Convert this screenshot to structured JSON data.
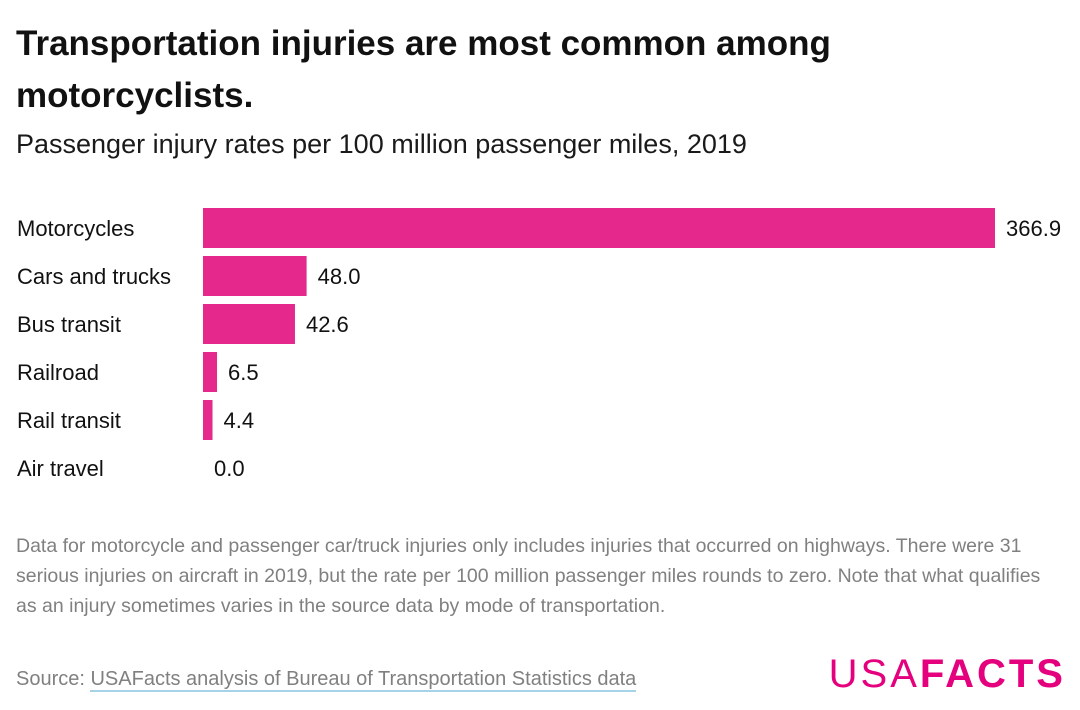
{
  "header": {
    "title": "Transportation injuries are most common among motorcyclists.",
    "subtitle": "Passenger injury rates per 100 million passenger miles, 2019"
  },
  "chart_data": {
    "type": "bar",
    "orientation": "horizontal",
    "categories": [
      "Motorcycles",
      "Cars and trucks",
      "Bus transit",
      "Railroad",
      "Rail transit",
      "Air travel"
    ],
    "values": [
      366.9,
      48.0,
      42.6,
      6.5,
      4.4,
      0.0
    ],
    "value_labels": [
      "366.9",
      "48.0",
      "42.6",
      "6.5",
      "4.4",
      "0.0"
    ],
    "title": "Transportation injuries are most common among motorcyclists.",
    "subtitle": "Passenger injury rates per 100 million passenger miles, 2019",
    "xlim": [
      0,
      366.9
    ],
    "grid": false,
    "bar_color": "#e5288c"
  },
  "footer": {
    "note": "Data for motorcycle and passenger car/truck injuries only includes injuries that occurred on highways. There were 31 serious injuries on aircraft in 2019, but the rate per 100 million passenger miles rounds to zero. Note that what qualifies as an injury sometimes varies in the source data by mode of transportation.",
    "source_prefix": "Source: ",
    "source_link": "USAFacts analysis of Bureau of Transportation Statistics data"
  },
  "logo": {
    "part1": "USA",
    "part2": "FACTS",
    "color": "#e5007e"
  }
}
